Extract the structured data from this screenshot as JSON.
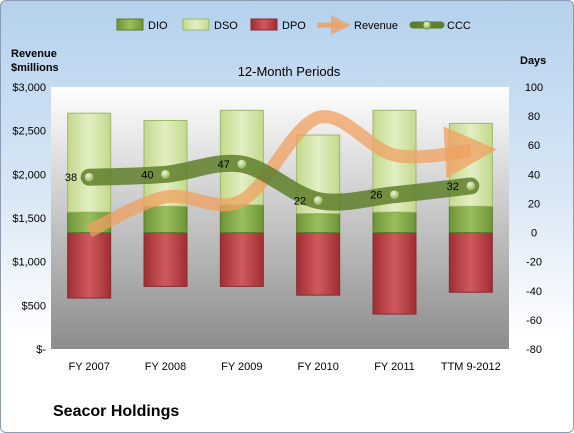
{
  "chart_data": {
    "type": "bar",
    "title": "12-Month Periods",
    "categories": [
      "FY 2007",
      "FY 2008",
      "FY 2009",
      "FY 2010",
      "FY 2011",
      "TTM 9-2012"
    ],
    "left_axis": {
      "label": "Revenue $millions",
      "ylim": [
        0,
        3000
      ],
      "ticks": [
        "$-",
        "$500",
        "$1,000",
        "$1,500",
        "$2,000",
        "$2,500",
        "$3,000"
      ]
    },
    "right_axis": {
      "label": "Days",
      "ylim": [
        -80,
        100
      ],
      "ticks": [
        "-80",
        "-60",
        "-40",
        "-20",
        "0",
        "20",
        "40",
        "60",
        "80",
        "100"
      ]
    },
    "series": [
      {
        "name": "DIO",
        "axis": "right",
        "color": "#7ea044",
        "values": [
          14,
          18,
          19,
          13,
          14,
          18
        ]
      },
      {
        "name": "DSO",
        "axis": "right",
        "color": "#d7e8b0",
        "values": [
          68,
          59,
          65,
          54,
          70,
          57
        ]
      },
      {
        "name": "DPO",
        "axis": "right",
        "color": "#b33a3e",
        "values": [
          -45,
          -37,
          -37,
          -43,
          -56,
          -41
        ]
      },
      {
        "name": "Revenue",
        "axis": "left",
        "color": "#f0a060",
        "values": [
          1350,
          1740,
          1700,
          2650,
          2220,
          2270
        ]
      },
      {
        "name": "CCC",
        "axis": "right",
        "color": "#5f7f2c",
        "values": [
          38,
          40,
          47,
          22,
          26,
          32
        ]
      }
    ],
    "ccc_labels": [
      "38",
      "40",
      "47",
      "22",
      "26",
      "32"
    ],
    "legend_placement": "top",
    "grid": false
  },
  "footer": {
    "company": "Seacor Holdings"
  },
  "colors": {
    "plot_top": "#ffffff",
    "plot_bottom": "#8c8c8c",
    "ccc_marker": "#c8d89a"
  }
}
